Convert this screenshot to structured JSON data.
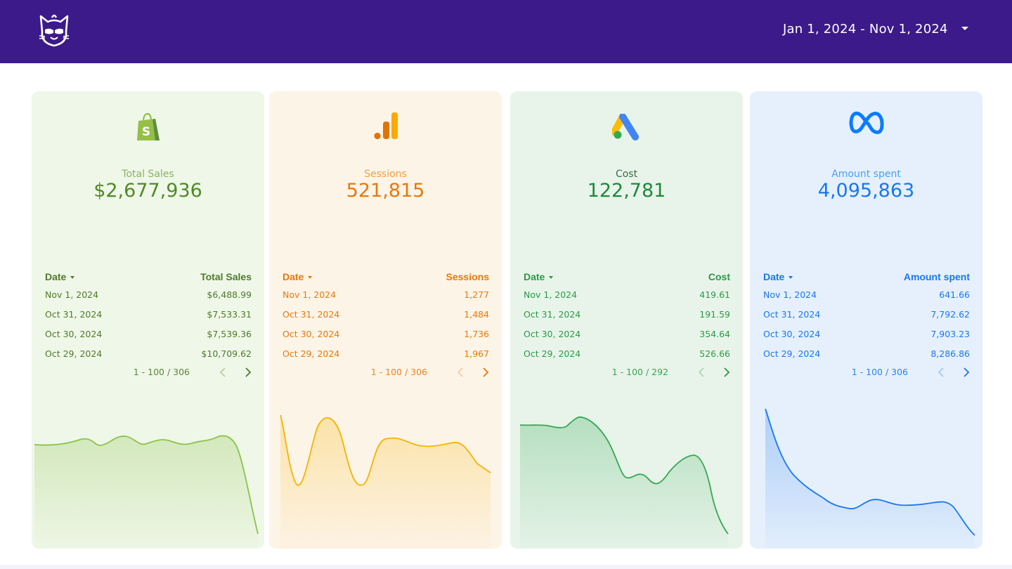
{
  "header": {
    "logo_icon": "cat-mascot-icon",
    "date_range": "Jan 1, 2024 - Nov 1, 2024",
    "dropdown_icon": "caret-down-icon"
  },
  "cards": [
    {
      "platform_icon": "shopify-icon",
      "kpi_label": "Total Sales",
      "kpi_value": "$2,677,936",
      "table": {
        "date_header": "Date",
        "metric_header": "Total Sales",
        "rows": [
          {
            "date": "Nov 1, 2024",
            "value": "$6,488.99"
          },
          {
            "date": "Oct 31, 2024",
            "value": "$7,533.31"
          },
          {
            "date": "Oct 30, 2024",
            "value": "$7,539.36"
          },
          {
            "date": "Oct 29, 2024",
            "value": "$10,709.62"
          }
        ],
        "pagination": "1 - 100 / 306"
      },
      "colors": {
        "bg": "#eff7e8",
        "label": "#8bb06a",
        "value": "#4f8a26",
        "text": "#4e7a2a",
        "line": "#8bc34a"
      }
    },
    {
      "platform_icon": "google-analytics-icon",
      "kpi_label": "Sessions",
      "kpi_value": "521,815",
      "table": {
        "date_header": "Date",
        "metric_header": "Sessions",
        "rows": [
          {
            "date": "Nov 1, 2024",
            "value": "1,277"
          },
          {
            "date": "Oct 31, 2024",
            "value": "1,484"
          },
          {
            "date": "Oct 30, 2024",
            "value": "1,736"
          },
          {
            "date": "Oct 29, 2024",
            "value": "1,967"
          }
        ],
        "pagination": "1 - 100 / 306"
      },
      "colors": {
        "bg": "#fdf4e8",
        "label": "#f0a040",
        "value": "#e8790a",
        "text": "#e8790a",
        "line": "#f4b400"
      }
    },
    {
      "platform_icon": "google-ads-icon",
      "kpi_label": "Cost",
      "kpi_value": "122,781",
      "table": {
        "date_header": "Date",
        "metric_header": "Cost",
        "rows": [
          {
            "date": "Nov 1, 2024",
            "value": "419.61"
          },
          {
            "date": "Oct 31, 2024",
            "value": "191.59"
          },
          {
            "date": "Oct 30, 2024",
            "value": "354.64"
          },
          {
            "date": "Oct 29, 2024",
            "value": "526.66"
          }
        ],
        "pagination": "1 - 100 / 292"
      },
      "colors": {
        "bg": "#e8f4ea",
        "label": "#3c6a44",
        "value": "#1e8a3a",
        "text": "#2a9a44",
        "line": "#34a853"
      }
    },
    {
      "platform_icon": "meta-icon",
      "kpi_label": "Amount spent",
      "kpi_value": "4,095,863",
      "table": {
        "date_header": "Date",
        "metric_header": "Amount spent",
        "rows": [
          {
            "date": "Nov 1, 2024",
            "value": "641.66"
          },
          {
            "date": "Oct 31, 2024",
            "value": "7,792.62"
          },
          {
            "date": "Oct 30, 2024",
            "value": "7,903.23"
          },
          {
            "date": "Oct 29, 2024",
            "value": "8,286.86"
          }
        ],
        "pagination": "1 - 100 / 306"
      },
      "colors": {
        "bg": "#e6f0fc",
        "label": "#4aa0f0",
        "value": "#1877f2",
        "text": "#1877f2",
        "line": "#1877f2"
      }
    }
  ]
}
